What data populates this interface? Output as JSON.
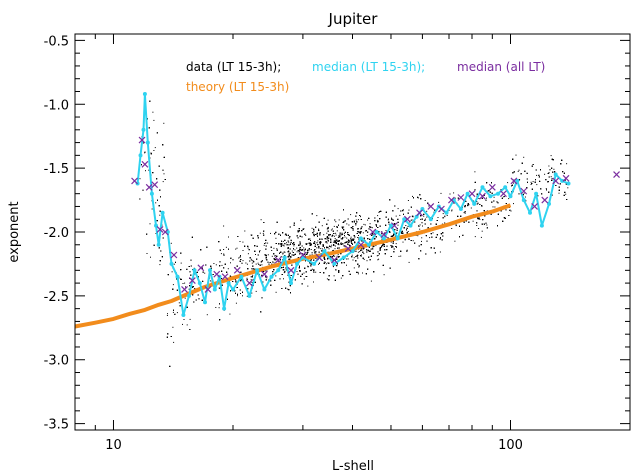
{
  "chart_data": {
    "type": "scatter",
    "title": "Jupiter",
    "xlabel": "L-shell",
    "ylabel": "exponent",
    "xscale": "log",
    "xlim": [
      8,
      200
    ],
    "ylim": [
      -3.55,
      -0.45
    ],
    "x_major_ticks": [
      10,
      100
    ],
    "x_tick_labels": [
      "10",
      "100"
    ],
    "y_ticks": [
      -3.5,
      -3.0,
      -2.5,
      -2.0,
      -1.5,
      -1.0,
      -0.5
    ],
    "y_tick_labels": [
      "-3.5",
      "-3.0",
      "-2.5",
      "-2.0",
      "-1.5",
      "-1.0",
      "-0.5"
    ],
    "legend": {
      "placement": "top-center",
      "entries": [
        {
          "label": "data (LT 15-3h);",
          "color": "#000000"
        },
        {
          "label": "median (LT 15-3h);",
          "color": "#2fd3f0"
        },
        {
          "label": "median (all LT)",
          "color": "#7b2ea0"
        },
        {
          "label": "theory (LT 15-3h)",
          "color": "#f28c1c"
        }
      ]
    },
    "colors": {
      "data": "#000000",
      "median_lt": "#2fd3f0",
      "median_all": "#7b2ea0",
      "theory": "#f28c1c"
    },
    "series": [
      {
        "name": "theory (LT 15-3h)",
        "kind": "line",
        "x": [
          8,
          9,
          10,
          11,
          12,
          13,
          14,
          15,
          17,
          20,
          25,
          30,
          35,
          40,
          50,
          60,
          70,
          80,
          90,
          100
        ],
        "y": [
          -2.74,
          -2.71,
          -2.68,
          -2.64,
          -2.61,
          -2.57,
          -2.54,
          -2.5,
          -2.43,
          -2.36,
          -2.27,
          -2.21,
          -2.17,
          -2.13,
          -2.06,
          -2.0,
          -1.94,
          -1.88,
          -1.84,
          -1.79
        ]
      },
      {
        "name": "median (LT 15-3h)",
        "kind": "line-markers",
        "x": [
          11.5,
          11.7,
          11.9,
          12.0,
          12.2,
          12.5,
          12.8,
          13.0,
          13.3,
          13.7,
          14.0,
          14.5,
          15.0,
          15.5,
          16.0,
          16.5,
          17.0,
          17.5,
          18.0,
          18.5,
          19.0,
          19.5,
          20,
          21,
          22,
          23,
          24,
          25,
          26,
          27,
          28,
          29,
          30,
          32,
          34,
          36,
          38,
          40,
          42,
          44,
          46,
          48,
          50,
          52,
          54,
          56,
          58,
          60,
          63,
          66,
          69,
          72,
          75,
          78,
          81,
          85,
          89,
          93,
          97,
          100,
          104,
          108,
          112,
          116,
          120,
          125,
          130,
          135,
          140
        ],
        "y": [
          -1.62,
          -1.4,
          -1.2,
          -0.92,
          -1.3,
          -1.7,
          -1.95,
          -2.1,
          -1.85,
          -2.0,
          -2.25,
          -2.35,
          -2.65,
          -2.5,
          -2.3,
          -2.4,
          -2.55,
          -2.3,
          -2.45,
          -2.35,
          -2.6,
          -2.4,
          -2.45,
          -2.35,
          -2.5,
          -2.3,
          -2.45,
          -2.35,
          -2.3,
          -2.2,
          -2.4,
          -2.25,
          -2.2,
          -2.25,
          -2.15,
          -2.25,
          -2.2,
          -2.15,
          -2.05,
          -2.1,
          -2.0,
          -2.05,
          -1.95,
          -2.05,
          -1.9,
          -1.95,
          -1.88,
          -1.82,
          -1.9,
          -1.8,
          -1.85,
          -1.75,
          -1.82,
          -1.7,
          -1.78,
          -1.65,
          -1.72,
          -1.7,
          -1.65,
          -1.72,
          -1.6,
          -1.75,
          -1.85,
          -1.7,
          -1.95,
          -1.78,
          -1.55,
          -1.6,
          -1.62
        ]
      },
      {
        "name": "median (all LT)",
        "kind": "markers",
        "x": [
          11.3,
          11.8,
          12.0,
          12.3,
          12.7,
          13.1,
          13.5,
          14.2,
          15.1,
          15.8,
          16.6,
          17.3,
          18.2,
          19.1,
          20.5,
          22,
          24,
          26,
          28,
          30,
          33,
          36,
          39,
          42,
          45,
          48,
          51,
          55,
          59,
          63,
          67,
          71,
          75,
          80,
          85,
          90,
          96,
          102,
          108,
          115,
          122,
          130,
          138,
          185
        ],
        "y": [
          -1.6,
          -1.28,
          -1.47,
          -1.65,
          -1.63,
          -1.98,
          -2.0,
          -2.18,
          -2.45,
          -2.38,
          -2.28,
          -2.45,
          -2.33,
          -2.35,
          -2.3,
          -2.4,
          -2.33,
          -2.22,
          -2.3,
          -2.18,
          -2.2,
          -2.22,
          -2.13,
          -2.1,
          -2.0,
          -2.02,
          -1.95,
          -1.9,
          -1.85,
          -1.8,
          -1.82,
          -1.75,
          -1.73,
          -1.7,
          -1.72,
          -1.65,
          -1.7,
          -1.6,
          -1.68,
          -1.8,
          -1.75,
          -1.6,
          -1.58,
          -1.55
        ]
      }
    ]
  }
}
